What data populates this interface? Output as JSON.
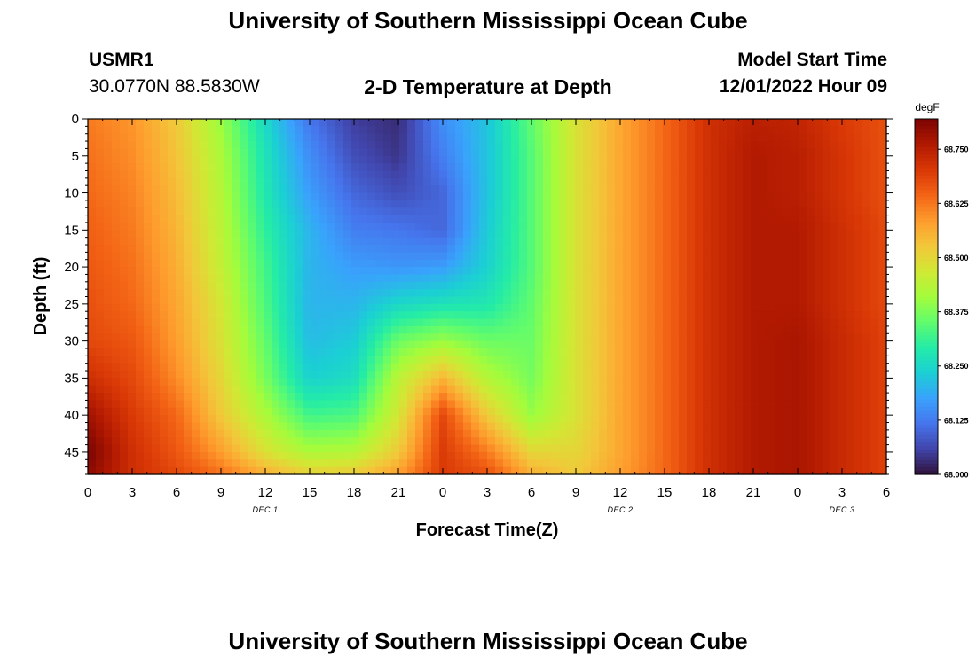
{
  "header": {
    "title": "University of Southern Mississippi Ocean Cube",
    "station_id": "USMR1",
    "coordinates": "30.0770N  88.5830W",
    "subtitle": "2-D Temperature at Depth",
    "model_start_label": "Model Start Time",
    "model_start_value": "12/01/2022 Hour 09"
  },
  "footer": {
    "title": "University of Southern Mississippi Ocean Cube"
  },
  "chart_data": {
    "type": "heatmap",
    "title": "2-D Temperature at Depth",
    "xlabel": "Forecast Time(Z)",
    "ylabel": "Depth (ft)",
    "x_tick_labels": [
      "0",
      "3",
      "6",
      "9",
      "12",
      "15",
      "18",
      "21",
      "0",
      "3",
      "6",
      "9",
      "12",
      "15",
      "18",
      "21",
      "0",
      "3",
      "6"
    ],
    "x_range_hours": [
      0,
      54
    ],
    "day_labels": [
      {
        "label": "DEC 1",
        "hour": 12
      },
      {
        "label": "DEC 2",
        "hour": 36
      },
      {
        "label": "DEC 3",
        "hour": 51
      }
    ],
    "y_ticks": [
      0,
      5,
      10,
      15,
      20,
      25,
      30,
      35,
      40,
      45
    ],
    "y_range": [
      0,
      48
    ],
    "y_inverted": true,
    "colorbar": {
      "unit": "degF",
      "min": 68.0,
      "max": 68.82,
      "tick_labels": [
        "68.750",
        "68.625",
        "68.500",
        "68.375",
        "68.250",
        "68.125",
        "68.000"
      ],
      "tick_values": [
        68.75,
        68.625,
        68.5,
        68.375,
        68.25,
        68.125,
        68.0
      ],
      "colors": [
        "#30123b",
        "#4145ab",
        "#4675ed",
        "#39a2fc",
        "#1bcfd4",
        "#24eca6",
        "#61fc6c",
        "#a4fc3b",
        "#d1e834",
        "#f3c63a",
        "#fe9b2d",
        "#f36315",
        "#d93806",
        "#b11901",
        "#7a0402"
      ]
    },
    "temperature_rows": [
      {
        "depth": 0,
        "values": [
          68.62,
          68.59,
          68.52,
          68.4,
          68.25,
          68.12,
          68.05,
          68.03,
          68.15,
          68.22,
          68.35,
          68.48,
          68.57,
          68.64,
          68.72,
          68.75,
          68.74,
          68.7,
          68.67
        ]
      },
      {
        "depth": 5,
        "values": [
          68.63,
          68.6,
          68.53,
          68.42,
          68.27,
          68.15,
          68.07,
          68.04,
          68.13,
          68.22,
          68.34,
          68.48,
          68.57,
          68.64,
          68.72,
          68.76,
          68.75,
          68.71,
          68.67
        ]
      },
      {
        "depth": 10,
        "values": [
          68.64,
          68.61,
          68.54,
          68.43,
          68.28,
          68.17,
          68.1,
          68.07,
          68.1,
          68.22,
          68.34,
          68.48,
          68.57,
          68.64,
          68.72,
          68.76,
          68.75,
          68.71,
          68.67
        ]
      },
      {
        "depth": 15,
        "values": [
          68.65,
          68.62,
          68.55,
          68.44,
          68.3,
          68.2,
          68.13,
          68.12,
          68.1,
          68.23,
          68.34,
          68.48,
          68.57,
          68.64,
          68.72,
          68.76,
          68.76,
          68.72,
          68.68
        ]
      },
      {
        "depth": 20,
        "values": [
          68.66,
          68.63,
          68.56,
          68.45,
          68.32,
          68.2,
          68.17,
          68.16,
          68.17,
          68.24,
          68.34,
          68.48,
          68.57,
          68.64,
          68.72,
          68.76,
          68.76,
          68.72,
          68.68
        ]
      },
      {
        "depth": 25,
        "values": [
          68.67,
          68.64,
          68.57,
          68.47,
          68.33,
          68.2,
          68.2,
          68.25,
          68.27,
          68.28,
          68.35,
          68.48,
          68.57,
          68.64,
          68.72,
          68.76,
          68.76,
          68.72,
          68.68
        ]
      },
      {
        "depth": 30,
        "values": [
          68.68,
          68.66,
          68.58,
          68.48,
          68.35,
          68.21,
          68.23,
          68.36,
          68.4,
          68.36,
          68.36,
          68.48,
          68.57,
          68.64,
          68.72,
          68.76,
          68.77,
          68.73,
          68.69
        ]
      },
      {
        "depth": 35,
        "values": [
          68.72,
          68.68,
          68.6,
          68.5,
          68.37,
          68.24,
          68.26,
          68.44,
          68.55,
          68.43,
          68.37,
          68.48,
          68.57,
          68.64,
          68.72,
          68.76,
          68.77,
          68.73,
          68.69
        ]
      },
      {
        "depth": 40,
        "values": [
          68.78,
          68.7,
          68.64,
          68.52,
          68.42,
          68.32,
          68.33,
          68.47,
          68.68,
          68.52,
          68.4,
          68.48,
          68.57,
          68.64,
          68.72,
          68.76,
          68.77,
          68.73,
          68.69
        ]
      },
      {
        "depth": 45,
        "values": [
          68.82,
          68.72,
          68.66,
          68.58,
          68.48,
          68.42,
          68.43,
          68.52,
          68.7,
          68.62,
          68.5,
          68.5,
          68.57,
          68.64,
          68.72,
          68.76,
          68.77,
          68.73,
          68.69
        ]
      },
      {
        "depth": 48,
        "values": [
          68.8,
          68.72,
          68.68,
          68.63,
          68.56,
          68.51,
          68.52,
          68.58,
          68.7,
          68.67,
          68.56,
          68.52,
          68.58,
          68.64,
          68.72,
          68.76,
          68.77,
          68.73,
          68.69
        ]
      }
    ]
  }
}
